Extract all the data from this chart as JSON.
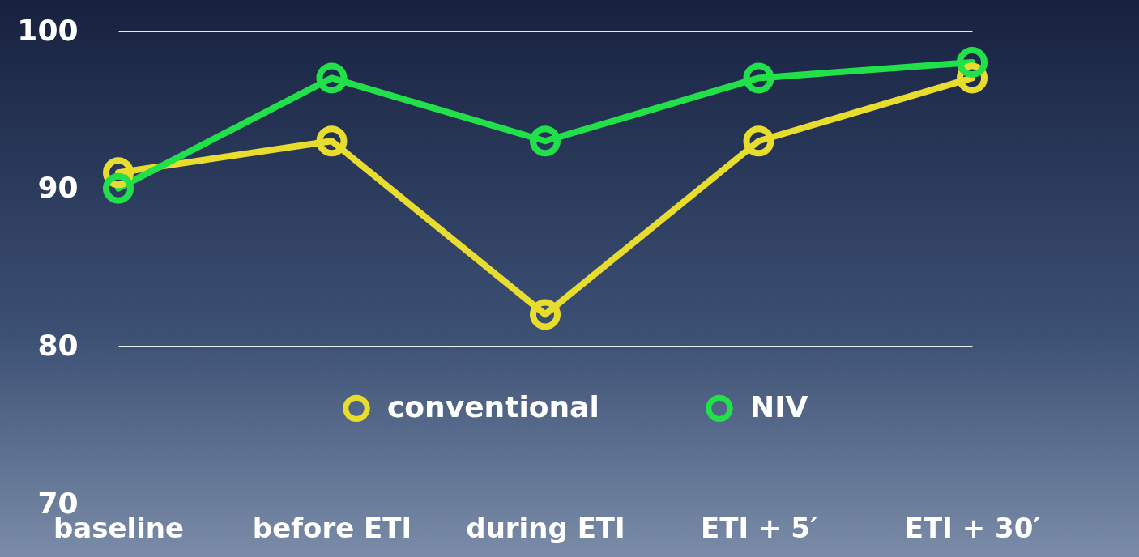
{
  "chart_data": {
    "type": "line",
    "categories": [
      "baseline",
      "before ETI",
      "during ETI",
      "ETI + 5′",
      "ETI + 30′"
    ],
    "series": [
      {
        "name": "conventional",
        "color": "#e8dd2e",
        "values": [
          91,
          93,
          82,
          93,
          97
        ]
      },
      {
        "name": "NIV",
        "color": "#22e04a",
        "values": [
          90,
          97,
          93,
          97,
          98
        ]
      }
    ],
    "ylim": [
      70,
      100
    ],
    "yticks": [
      70,
      80,
      90,
      100
    ],
    "grid": "y",
    "legend": "bottom",
    "marker": "circle",
    "line_style": "solid"
  }
}
